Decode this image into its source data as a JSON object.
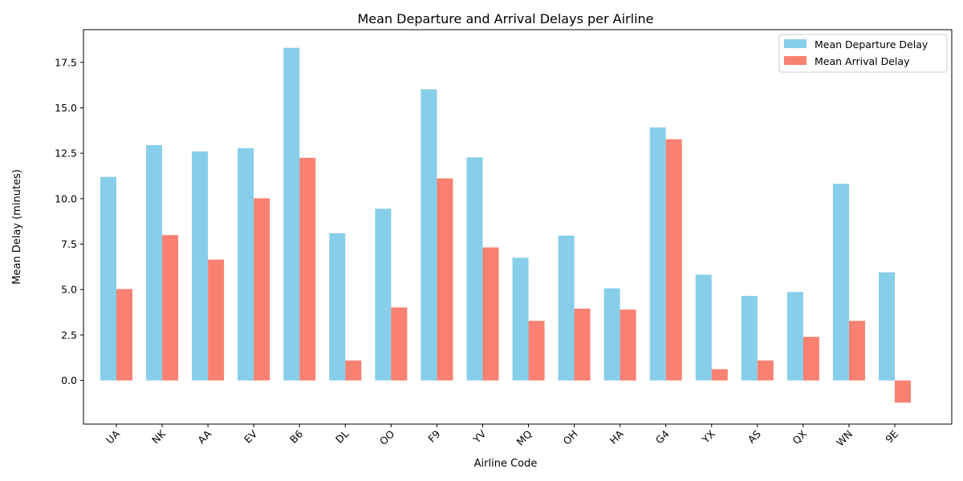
{
  "chart_data": {
    "type": "bar",
    "title": "Mean Departure and Arrival Delays per Airline",
    "xlabel": "Airline Code",
    "ylabel": "Mean Delay (minutes)",
    "categories": [
      "UA",
      "NK",
      "AA",
      "EV",
      "B6",
      "DL",
      "OO",
      "F9",
      "YV",
      "MQ",
      "OH",
      "HA",
      "G4",
      "YX",
      "AS",
      "QX",
      "WN",
      "9E"
    ],
    "series": [
      {
        "name": "Mean Departure Delay",
        "color": "#87CEEB",
        "values": [
          11.2,
          12.95,
          12.6,
          12.78,
          18.3,
          8.1,
          9.45,
          16.02,
          12.27,
          6.75,
          7.97,
          5.07,
          13.92,
          5.82,
          4.65,
          4.87,
          10.82,
          5.95
        ]
      },
      {
        "name": "Mean Arrival Delay",
        "color": "#FA8072",
        "values": [
          5.03,
          8.0,
          6.65,
          10.02,
          12.25,
          1.1,
          4.02,
          11.12,
          7.32,
          3.28,
          3.95,
          3.9,
          13.27,
          0.62,
          1.1,
          2.4,
          3.28,
          -1.22
        ]
      }
    ],
    "ylim": [
      -2.4,
      19.3
    ],
    "yticks": [
      0.0,
      2.5,
      5.0,
      7.5,
      10.0,
      12.5,
      15.0,
      17.5
    ],
    "grid": false,
    "legend": "top-right"
  }
}
